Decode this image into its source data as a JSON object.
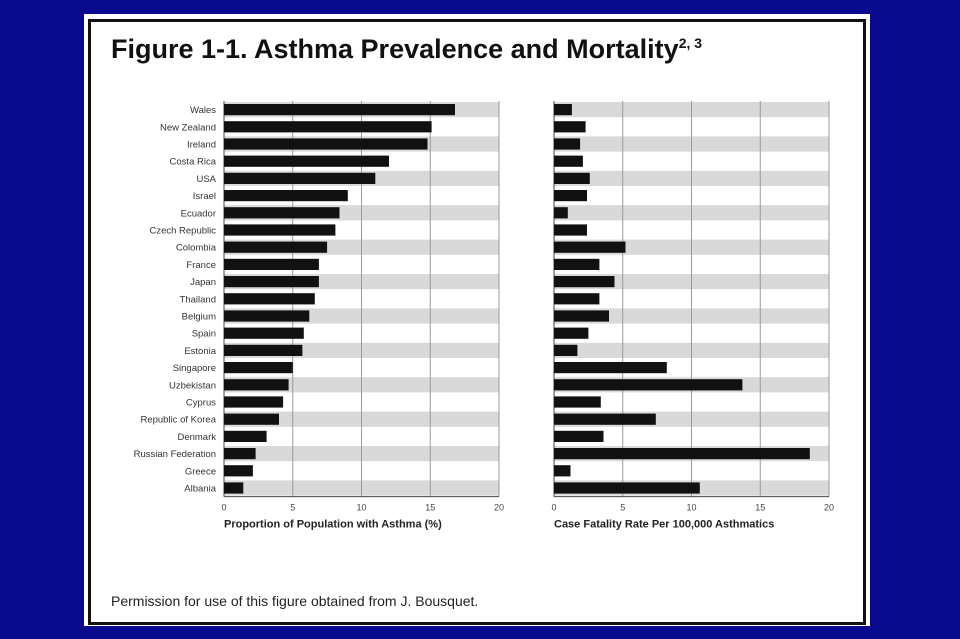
{
  "title": "Figure 1-1. Asthma Prevalence and Mortality",
  "title_refs": "2, 3",
  "footnote": "Permission for use of this figure obtained from J. Bousquet.",
  "colors": {
    "background": "#0a0a8f",
    "bar": "#111111",
    "band": "#d9d9d9"
  },
  "chart_data": [
    {
      "type": "bar",
      "orientation": "horizontal",
      "xlabel": "Proportion of Population with Asthma (%)",
      "xlim": [
        0,
        20
      ],
      "xticks": [
        0,
        5,
        10,
        15,
        20
      ],
      "grid": true,
      "categories": [
        "Wales",
        "New Zealand",
        "Ireland",
        "Costa Rica",
        "USA",
        "Israel",
        "Ecuador",
        "Czech Republic",
        "Colombia",
        "France",
        "Japan",
        "Thailand",
        "Belgium",
        "Spain",
        "Estonia",
        "Singapore",
        "Uzbekistan",
        "Cyprus",
        "Republic of Korea",
        "Denmark",
        "Russian Federation",
        "Greece",
        "Albania"
      ],
      "values": [
        16.8,
        15.1,
        14.8,
        12.0,
        11.0,
        9.0,
        8.4,
        8.1,
        7.5,
        6.9,
        6.9,
        6.6,
        6.2,
        5.8,
        5.7,
        5.0,
        4.7,
        4.3,
        4.0,
        3.1,
        2.3,
        2.1,
        1.4
      ]
    },
    {
      "type": "bar",
      "orientation": "horizontal",
      "xlabel": "Case Fatality Rate Per 100,000 Asthmatics",
      "xlim": [
        0,
        20
      ],
      "xticks": [
        0,
        5,
        10,
        15,
        20
      ],
      "grid": true,
      "categories": [
        "Wales",
        "New Zealand",
        "Ireland",
        "Costa Rica",
        "USA",
        "Israel",
        "Ecuador",
        "Czech Republic",
        "Colombia",
        "France",
        "Japan",
        "Thailand",
        "Belgium",
        "Spain",
        "Estonia",
        "Singapore",
        "Uzbekistan",
        "Cyprus",
        "Republic of Korea",
        "Denmark",
        "Russian Federation",
        "Greece",
        "Albania"
      ],
      "values": [
        1.3,
        2.3,
        1.9,
        2.1,
        2.6,
        2.4,
        1.0,
        2.4,
        5.2,
        3.3,
        4.4,
        3.3,
        4.0,
        2.5,
        1.7,
        8.2,
        13.7,
        3.4,
        7.4,
        3.6,
        18.6,
        1.2,
        10.6
      ]
    }
  ]
}
